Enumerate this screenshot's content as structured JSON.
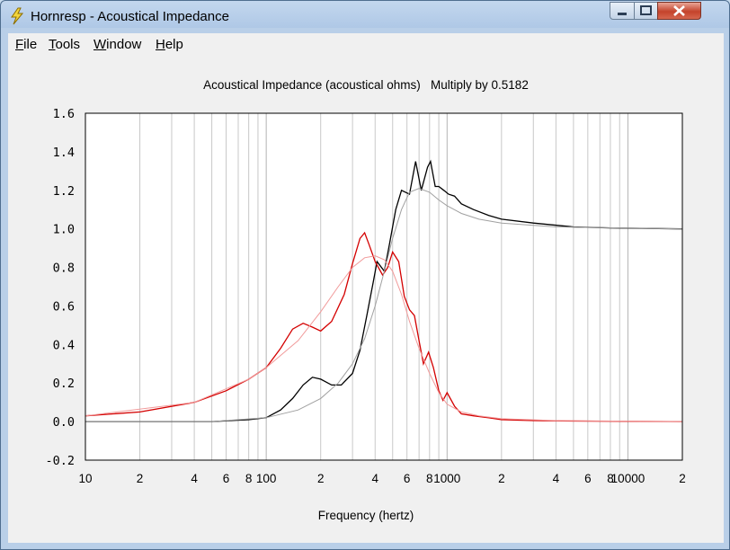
{
  "window": {
    "title": "Hornresp - Acoustical Impedance"
  },
  "menu": [
    "File",
    "Tools",
    "Window",
    "Help"
  ],
  "colors": {
    "black_series": "#000000",
    "red_series": "#d40000",
    "grid": "#c8c8c8"
  },
  "chart_data": {
    "type": "line",
    "title": "Acoustical Impedance (acoustical ohms)   Multiply by 0.5182",
    "xlabel": "Frequency (hertz)",
    "ylabel": "",
    "x_scale": "log",
    "xlim": [
      10,
      20000
    ],
    "ylim": [
      -0.2,
      1.6
    ],
    "y_ticks": [
      "1.6",
      "1.4",
      "1.2",
      "1.0",
      "0.8",
      "0.6",
      "0.4",
      "0.2",
      "0.0",
      "-0.2"
    ],
    "x_ticks": [
      {
        "v": 10,
        "label": "10"
      },
      {
        "v": 20,
        "label": "2"
      },
      {
        "v": 40,
        "label": "4"
      },
      {
        "v": 60,
        "label": "6"
      },
      {
        "v": 80,
        "label": "8"
      },
      {
        "v": 100,
        "label": "100"
      },
      {
        "v": 200,
        "label": "2"
      },
      {
        "v": 400,
        "label": "4"
      },
      {
        "v": 600,
        "label": "6"
      },
      {
        "v": 800,
        "label": "8"
      },
      {
        "v": 1000,
        "label": "1000"
      },
      {
        "v": 2000,
        "label": "2"
      },
      {
        "v": 4000,
        "label": "4"
      },
      {
        "v": 6000,
        "label": "6"
      },
      {
        "v": 8000,
        "label": "8"
      },
      {
        "v": 10000,
        "label": "10000"
      },
      {
        "v": 20000,
        "label": "2"
      }
    ],
    "grid": true,
    "series": [
      {
        "color": "#000000",
        "points": [
          [
            10,
            0.0
          ],
          [
            50,
            0.0
          ],
          [
            80,
            0.01
          ],
          [
            100,
            0.02
          ],
          [
            120,
            0.06
          ],
          [
            140,
            0.12
          ],
          [
            160,
            0.19
          ],
          [
            180,
            0.23
          ],
          [
            200,
            0.22
          ],
          [
            230,
            0.19
          ],
          [
            260,
            0.19
          ],
          [
            300,
            0.25
          ],
          [
            330,
            0.37
          ],
          [
            360,
            0.55
          ],
          [
            390,
            0.72
          ],
          [
            410,
            0.83
          ],
          [
            450,
            0.78
          ],
          [
            480,
            0.92
          ],
          [
            520,
            1.1
          ],
          [
            560,
            1.2
          ],
          [
            620,
            1.18
          ],
          [
            670,
            1.35
          ],
          [
            720,
            1.2
          ],
          [
            780,
            1.32
          ],
          [
            810,
            1.35
          ],
          [
            860,
            1.22
          ],
          [
            900,
            1.22
          ],
          [
            960,
            1.2
          ],
          [
            1020,
            1.18
          ],
          [
            1100,
            1.17
          ],
          [
            1200,
            1.13
          ],
          [
            1400,
            1.1
          ],
          [
            1700,
            1.07
          ],
          [
            2000,
            1.05
          ],
          [
            3000,
            1.03
          ],
          [
            5000,
            1.01
          ],
          [
            8000,
            1.005
          ],
          [
            20000,
            1.0
          ]
        ]
      },
      {
        "color": "#d40000",
        "points": [
          [
            10,
            0.03
          ],
          [
            20,
            0.05
          ],
          [
            40,
            0.1
          ],
          [
            60,
            0.16
          ],
          [
            80,
            0.22
          ],
          [
            100,
            0.28
          ],
          [
            120,
            0.38
          ],
          [
            140,
            0.48
          ],
          [
            160,
            0.51
          ],
          [
            180,
            0.49
          ],
          [
            200,
            0.47
          ],
          [
            230,
            0.52
          ],
          [
            270,
            0.66
          ],
          [
            300,
            0.82
          ],
          [
            330,
            0.95
          ],
          [
            350,
            0.98
          ],
          [
            370,
            0.92
          ],
          [
            400,
            0.83
          ],
          [
            440,
            0.76
          ],
          [
            470,
            0.8
          ],
          [
            500,
            0.88
          ],
          [
            540,
            0.83
          ],
          [
            580,
            0.65
          ],
          [
            620,
            0.58
          ],
          [
            660,
            0.55
          ],
          [
            700,
            0.42
          ],
          [
            740,
            0.3
          ],
          [
            790,
            0.36
          ],
          [
            840,
            0.28
          ],
          [
            900,
            0.16
          ],
          [
            950,
            0.11
          ],
          [
            1000,
            0.15
          ],
          [
            1100,
            0.08
          ],
          [
            1200,
            0.04
          ],
          [
            1400,
            0.03
          ],
          [
            1700,
            0.02
          ],
          [
            2000,
            0.01
          ],
          [
            3000,
            0.005
          ],
          [
            5000,
            0.003
          ],
          [
            20000,
            0.0
          ]
        ]
      },
      {
        "color": "#a0a0a0",
        "points": [
          [
            10,
            0.0
          ],
          [
            50,
            0.0
          ],
          [
            100,
            0.02
          ],
          [
            150,
            0.06
          ],
          [
            200,
            0.12
          ],
          [
            250,
            0.2
          ],
          [
            300,
            0.3
          ],
          [
            350,
            0.43
          ],
          [
            400,
            0.6
          ],
          [
            450,
            0.78
          ],
          [
            500,
            0.95
          ],
          [
            560,
            1.1
          ],
          [
            620,
            1.19
          ],
          [
            700,
            1.21
          ],
          [
            800,
            1.19
          ],
          [
            900,
            1.15
          ],
          [
            1000,
            1.12
          ],
          [
            1200,
            1.08
          ],
          [
            1500,
            1.05
          ],
          [
            2000,
            1.03
          ],
          [
            4000,
            1.01
          ],
          [
            20000,
            1.0
          ]
        ]
      },
      {
        "color": "#f19a9a",
        "points": [
          [
            10,
            0.03
          ],
          [
            40,
            0.1
          ],
          [
            80,
            0.22
          ],
          [
            100,
            0.28
          ],
          [
            150,
            0.42
          ],
          [
            200,
            0.57
          ],
          [
            250,
            0.7
          ],
          [
            300,
            0.8
          ],
          [
            350,
            0.85
          ],
          [
            400,
            0.86
          ],
          [
            450,
            0.84
          ],
          [
            500,
            0.78
          ],
          [
            560,
            0.66
          ],
          [
            620,
            0.52
          ],
          [
            700,
            0.38
          ],
          [
            800,
            0.25
          ],
          [
            900,
            0.15
          ],
          [
            1000,
            0.09
          ],
          [
            1200,
            0.05
          ],
          [
            1500,
            0.03
          ],
          [
            2000,
            0.015
          ],
          [
            4000,
            0.005
          ],
          [
            20000,
            0.0
          ]
        ]
      }
    ]
  }
}
